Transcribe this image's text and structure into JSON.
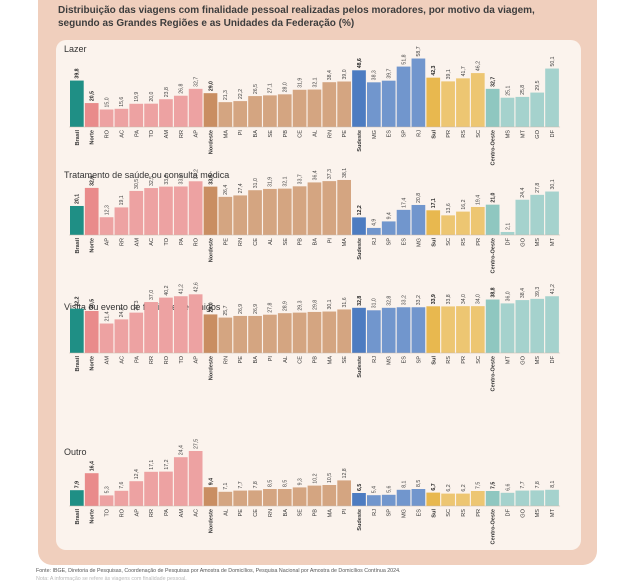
{
  "title": "Distribuição das viagens com finalidade pessoal realizadas pelos moradores, por motivo da viagem, segundo as Grandes Regiões e as Unidades da Federação (%)",
  "source": "Fonte: IBGE, Diretoria de Pesquisas, Coordenação de Pesquisas por Amostra de Domicílios, Pesquisa Nacional por Amostra de Domicílios Contínua 2024.",
  "source_note": "Nota: A informação se refere às viagens com finalidade pessoal.",
  "colors": {
    "Brasil": "#1f8f85",
    "Norte": "#e98b8b",
    "Nordeste": "#c98e62",
    "Sudeste": "#4d7cc1",
    "Sul": "#e8b84f",
    "Centro-Oeste": "#8fc7c0"
  },
  "chart_data": [
    {
      "type": "bar",
      "title": "Lazer",
      "categories": [
        "Brasil",
        "Norte",
        "RO",
        "AC",
        "PA",
        "TO",
        "AM",
        "RR",
        "AP",
        "Nordeste",
        "MA",
        "PI",
        "BA",
        "SE",
        "PB",
        "CE",
        "AL",
        "RN",
        "PE",
        "Sudeste",
        "MG",
        "ES",
        "SP",
        "RJ",
        "Sul",
        "PR",
        "RS",
        "SC",
        "Centro-Oeste",
        "MS",
        "MT",
        "GO",
        "DF"
      ],
      "groups": [
        "Brasil",
        "Norte",
        "Norte",
        "Norte",
        "Norte",
        "Norte",
        "Norte",
        "Norte",
        "Norte",
        "Nordeste",
        "Nordeste",
        "Nordeste",
        "Nordeste",
        "Nordeste",
        "Nordeste",
        "Nordeste",
        "Nordeste",
        "Nordeste",
        "Nordeste",
        "Sudeste",
        "Sudeste",
        "Sudeste",
        "Sudeste",
        "Sudeste",
        "Sul",
        "Sul",
        "Sul",
        "Sul",
        "Centro-Oeste",
        "Centro-Oeste",
        "Centro-Oeste",
        "Centro-Oeste",
        "Centro-Oeste"
      ],
      "labels": [
        "39,8",
        "20,5",
        "15,0",
        "15,6",
        "19,9",
        "20,0",
        "23,8",
        "26,8",
        "32,7",
        "29,0",
        "21,3",
        "22,2",
        "26,5",
        "27,1",
        "28,0",
        "31,9",
        "32,1",
        "38,4",
        "39,0",
        "48,6",
        "38,3",
        "39,7",
        "51,8",
        "58,7",
        "42,3",
        "39,1",
        "41,7",
        "46,2",
        "32,7",
        "25,1",
        "25,8",
        "29,5",
        "50,1"
      ],
      "values": [
        39.8,
        20.5,
        15.0,
        15.6,
        19.9,
        20.0,
        23.8,
        26.8,
        32.7,
        29.0,
        21.3,
        22.2,
        26.5,
        27.1,
        28.0,
        31.9,
        32.1,
        38.4,
        39.0,
        48.6,
        38.3,
        39.7,
        51.8,
        58.7,
        42.3,
        39.1,
        41.7,
        46.2,
        32.7,
        25.1,
        25.8,
        29.5,
        50.1
      ],
      "ylim": [
        0,
        60
      ]
    },
    {
      "type": "bar",
      "title": "Tratamento de saúde ou consulta médica",
      "categories": [
        "Brasil",
        "Norte",
        "AP",
        "RR",
        "AM",
        "AC",
        "TO",
        "PA",
        "RO",
        "Nordeste",
        "PE",
        "RN",
        "CE",
        "AL",
        "SE",
        "PB",
        "BA",
        "PI",
        "MA",
        "Sudeste",
        "RJ",
        "SP",
        "ES",
        "MG",
        "Sul",
        "SC",
        "RS",
        "PR",
        "Centro-Oeste",
        "DF",
        "GO",
        "MS",
        "MT"
      ],
      "groups": [
        "Brasil",
        "Norte",
        "Norte",
        "Norte",
        "Norte",
        "Norte",
        "Norte",
        "Norte",
        "Norte",
        "Nordeste",
        "Nordeste",
        "Nordeste",
        "Nordeste",
        "Nordeste",
        "Nordeste",
        "Nordeste",
        "Nordeste",
        "Nordeste",
        "Nordeste",
        "Sudeste",
        "Sudeste",
        "Sudeste",
        "Sudeste",
        "Sudeste",
        "Sul",
        "Sul",
        "Sul",
        "Sul",
        "Centro-Oeste",
        "Centro-Oeste",
        "Centro-Oeste",
        "Centro-Oeste",
        "Centro-Oeste"
      ],
      "labels": [
        "20,1",
        "32,6",
        "12,3",
        "19,1",
        "30,5",
        "32,5",
        "33,5",
        "33,6",
        "37,2",
        "33,5",
        "26,4",
        "27,4",
        "31,0",
        "31,9",
        "32,1",
        "33,7",
        "36,4",
        "37,3",
        "38,1",
        "12,2",
        "4,9",
        "9,4",
        "17,4",
        "20,8",
        "17,1",
        "13,6",
        "16,2",
        "19,4",
        "21,0",
        "2,1",
        "24,4",
        "27,8",
        "30,1"
      ],
      "values": [
        20.1,
        32.6,
        12.3,
        19.1,
        30.5,
        32.5,
        33.5,
        33.6,
        37.2,
        33.5,
        26.4,
        27.4,
        31.0,
        31.9,
        32.1,
        33.7,
        36.4,
        37.3,
        38.1,
        12.2,
        4.9,
        9.4,
        17.4,
        20.8,
        17.1,
        13.6,
        16.2,
        19.4,
        21.0,
        2.1,
        24.4,
        27.8,
        30.1
      ],
      "ylim": [
        0,
        45
      ]
    },
    {
      "type": "bar",
      "title": "Visita ou evento de familiares e amigos",
      "categories": [
        "Brasil",
        "Norte",
        "AM",
        "AC",
        "PA",
        "RR",
        "RO",
        "TO",
        "AP",
        "Nordeste",
        "RN",
        "PE",
        "BA",
        "PI",
        "AL",
        "CE",
        "PB",
        "MA",
        "SE",
        "Sudeste",
        "RJ",
        "MG",
        "ES",
        "SP",
        "Sul",
        "RS",
        "PR",
        "SC",
        "Centro-Oeste",
        "MT",
        "GO",
        "MS",
        "DF"
      ],
      "groups": [
        "Brasil",
        "Norte",
        "Norte",
        "Norte",
        "Norte",
        "Norte",
        "Norte",
        "Norte",
        "Norte",
        "Nordeste",
        "Nordeste",
        "Nordeste",
        "Nordeste",
        "Nordeste",
        "Nordeste",
        "Nordeste",
        "Nordeste",
        "Nordeste",
        "Nordeste",
        "Sudeste",
        "Sudeste",
        "Sudeste",
        "Sudeste",
        "Sudeste",
        "Sul",
        "Sul",
        "Sul",
        "Sul",
        "Centro-Oeste",
        "Centro-Oeste",
        "Centro-Oeste",
        "Centro-Oeste",
        "Centro-Oeste"
      ],
      "labels": [
        "32,2",
        "30,5",
        "21,4",
        "24,4",
        "29,3",
        "37,0",
        "40,2",
        "41,2",
        "42,6",
        "28,0",
        "25,7",
        "26,9",
        "26,9",
        "27,8",
        "28,9",
        "29,3",
        "29,8",
        "30,1",
        "31,6",
        "32,8",
        "31,0",
        "32,8",
        "33,2",
        "33,2",
        "33,9",
        "33,8",
        "34,0",
        "34,0",
        "38,8",
        "36,0",
        "38,4",
        "39,3",
        "41,2"
      ],
      "values": [
        32.2,
        30.5,
        21.4,
        24.4,
        29.3,
        37.0,
        40.2,
        41.2,
        42.6,
        28.0,
        25.7,
        26.9,
        26.9,
        27.8,
        28.9,
        29.3,
        29.8,
        30.1,
        31.6,
        32.8,
        31.0,
        32.8,
        33.2,
        33.2,
        33.9,
        33.8,
        34.0,
        34.0,
        38.8,
        36.0,
        38.4,
        39.3,
        41.2
      ],
      "ylim": [
        0,
        45
      ]
    },
    {
      "type": "bar",
      "title": "Outro",
      "categories": [
        "Brasil",
        "Norte",
        "TO",
        "RO",
        "AP",
        "RR",
        "PA",
        "AM",
        "AC",
        "Nordeste",
        "AL",
        "PE",
        "CE",
        "RN",
        "BA",
        "SE",
        "PB",
        "MA",
        "PI",
        "Sudeste",
        "RJ",
        "SP",
        "MG",
        "ES",
        "Sul",
        "SC",
        "RS",
        "PR",
        "Centro-Oeste",
        "DF",
        "GO",
        "MS",
        "MT"
      ],
      "groups": [
        "Brasil",
        "Norte",
        "Norte",
        "Norte",
        "Norte",
        "Norte",
        "Norte",
        "Norte",
        "Norte",
        "Nordeste",
        "Nordeste",
        "Nordeste",
        "Nordeste",
        "Nordeste",
        "Nordeste",
        "Nordeste",
        "Nordeste",
        "Nordeste",
        "Nordeste",
        "Sudeste",
        "Sudeste",
        "Sudeste",
        "Sudeste",
        "Sudeste",
        "Sul",
        "Sul",
        "Sul",
        "Sul",
        "Centro-Oeste",
        "Centro-Oeste",
        "Centro-Oeste",
        "Centro-Oeste",
        "Centro-Oeste"
      ],
      "labels": [
        "7,9",
        "16,4",
        "5,3",
        "7,6",
        "12,4",
        "17,1",
        "17,2",
        "24,4",
        "27,5",
        "9,4",
        "7,1",
        "7,7",
        "7,8",
        "8,5",
        "8,5",
        "9,3",
        "10,2",
        "10,5",
        "12,8",
        "6,5",
        "5,4",
        "5,6",
        "8,1",
        "8,5",
        "6,7",
        "6,2",
        "6,2",
        "7,5",
        "7,5",
        "6,6",
        "7,7",
        "7,8",
        "8,1"
      ],
      "values": [
        7.9,
        16.4,
        5.3,
        7.6,
        12.4,
        17.1,
        17.2,
        24.4,
        27.5,
        9.4,
        7.1,
        7.7,
        7.8,
        8.5,
        8.5,
        9.3,
        10.2,
        10.5,
        12.8,
        6.5,
        5.4,
        5.6,
        8.1,
        8.5,
        6.7,
        6.2,
        6.2,
        7.5,
        7.5,
        6.6,
        7.7,
        7.8,
        8.1
      ],
      "ylim": [
        0,
        30
      ]
    }
  ]
}
